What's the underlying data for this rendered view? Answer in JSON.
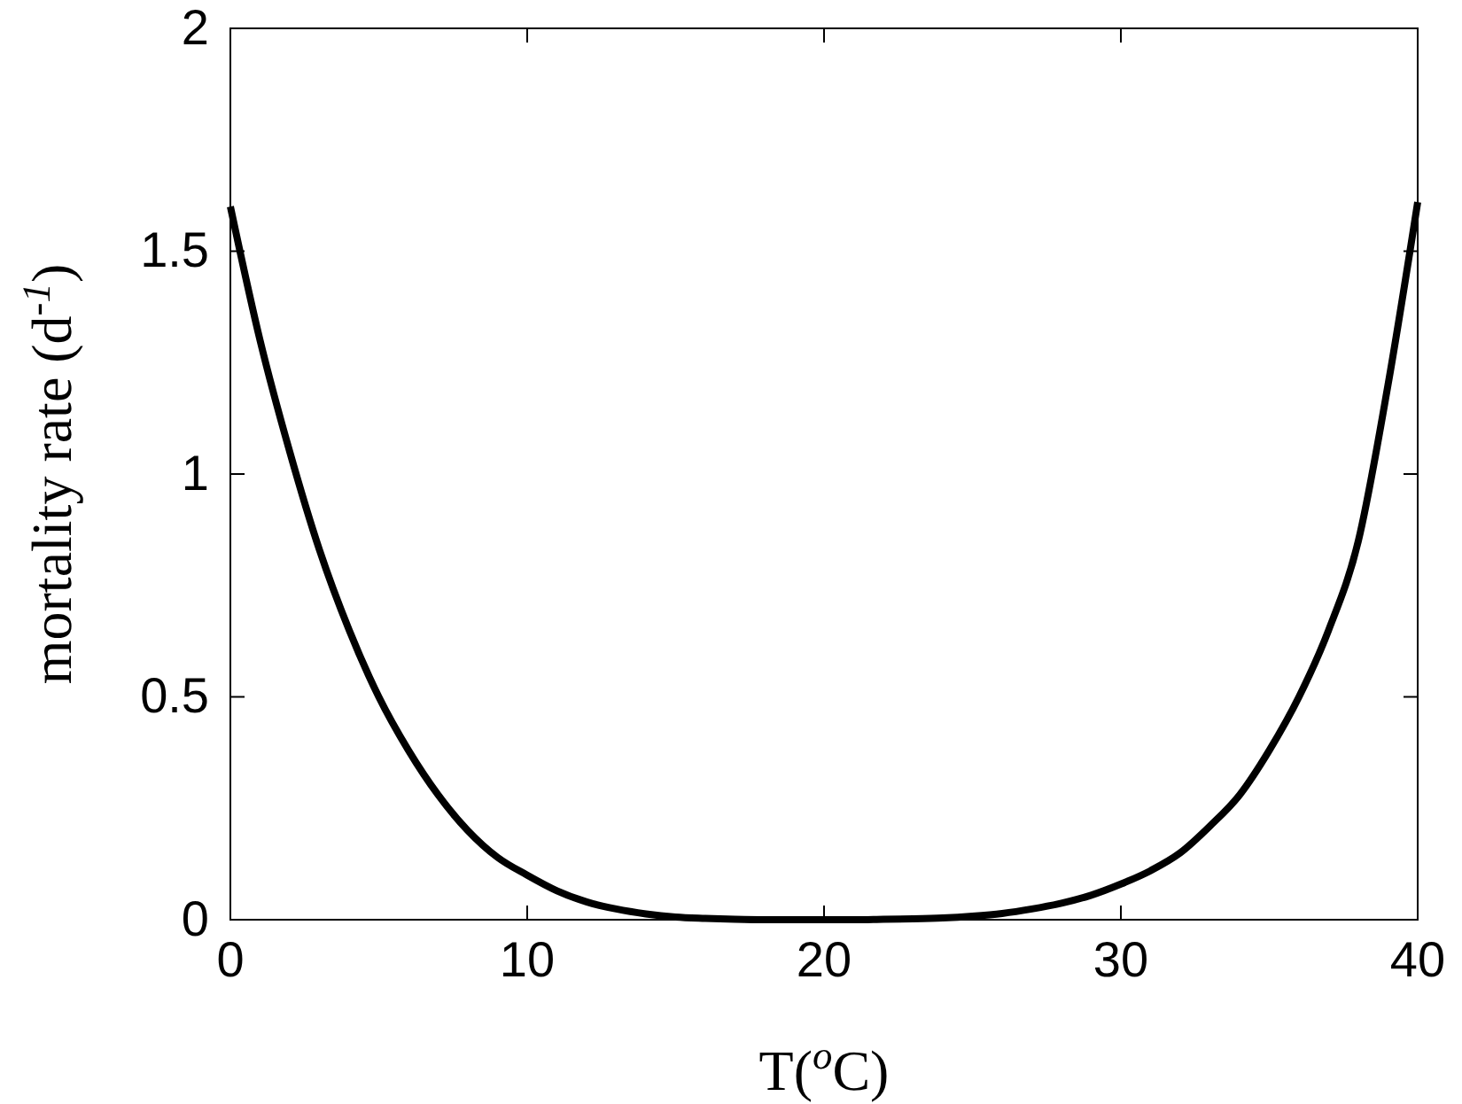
{
  "chart_data": {
    "type": "line",
    "xlabel": "T($^{o}$C)",
    "ylabel": "mortality rate (d$^{-1}$)",
    "xlim": [
      0,
      40
    ],
    "ylim": [
      0,
      2
    ],
    "xticks": [
      0,
      10,
      20,
      30,
      40
    ],
    "yticks": [
      0,
      0.5,
      1,
      1.5,
      2
    ],
    "grid": false,
    "marker": "none",
    "line_style": "solid",
    "series": [
      {
        "color": "#000000",
        "x": [
          0,
          1,
          2,
          3,
          4,
          5,
          6,
          7,
          8,
          9,
          10,
          11,
          12,
          13,
          14,
          15,
          16,
          17,
          18,
          19,
          20,
          21,
          22,
          23,
          24,
          25,
          26,
          27,
          28,
          29,
          30,
          31,
          32,
          33,
          34,
          35,
          36,
          37,
          38,
          39,
          40
        ],
        "values": [
          1.6,
          1.3,
          1.05,
          0.83,
          0.65,
          0.5,
          0.38,
          0.28,
          0.2,
          0.14,
          0.1,
          0.065,
          0.04,
          0.024,
          0.013,
          0.006,
          0.003,
          0.001,
          0,
          0,
          0,
          0,
          0.001,
          0.002,
          0.004,
          0.008,
          0.014,
          0.024,
          0.037,
          0.055,
          0.08,
          0.11,
          0.15,
          0.21,
          0.28,
          0.38,
          0.5,
          0.65,
          0.85,
          1.2,
          1.61
        ]
      }
    ]
  }
}
